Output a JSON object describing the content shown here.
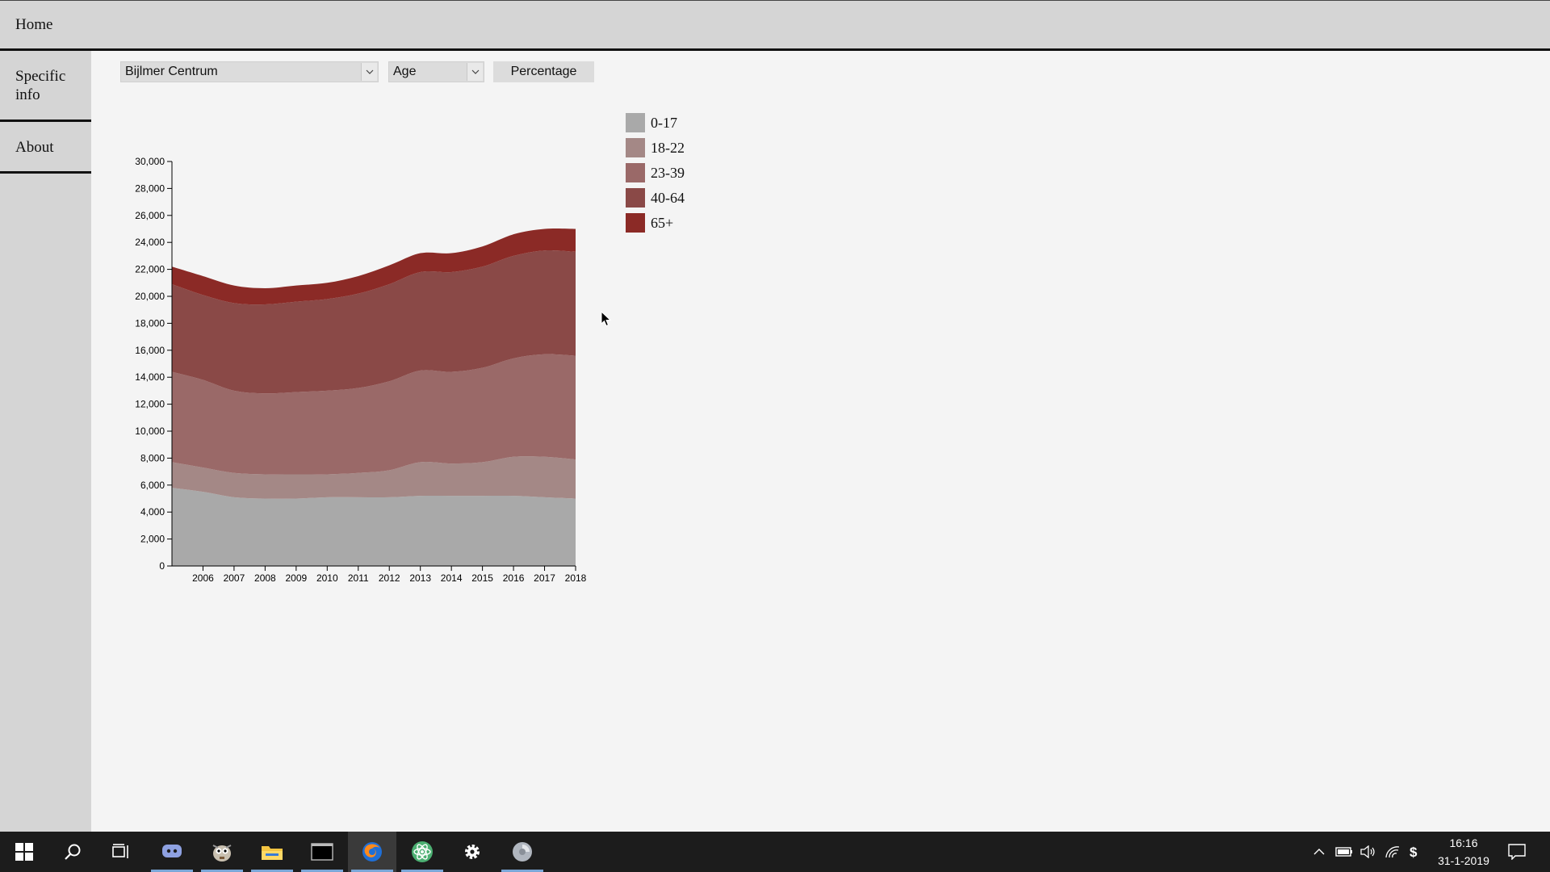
{
  "nav": {
    "home_label": "Home"
  },
  "sidebar": {
    "items": [
      {
        "label": "Specific info"
      },
      {
        "label": "About"
      }
    ]
  },
  "controls": {
    "area_select": {
      "value": "Bijlmer Centrum"
    },
    "variable_select": {
      "value": "Age"
    },
    "percentage_button": {
      "label": "Percentage"
    }
  },
  "chart_data": {
    "type": "area",
    "stacked": true,
    "x": [
      2005,
      2006,
      2007,
      2008,
      2009,
      2010,
      2011,
      2012,
      2013,
      2014,
      2015,
      2016,
      2017,
      2018
    ],
    "x_ticks": [
      2006,
      2007,
      2008,
      2009,
      2010,
      2011,
      2012,
      2013,
      2014,
      2015,
      2016,
      2017,
      2018
    ],
    "ylim": [
      0,
      30000
    ],
    "y_ticks": [
      0,
      2000,
      4000,
      6000,
      8000,
      10000,
      12000,
      14000,
      16000,
      18000,
      20000,
      22000,
      24000,
      26000,
      28000,
      30000
    ],
    "y_tick_labels": [
      "0",
      "2,000",
      "4,000",
      "6,000",
      "8,000",
      "10,000",
      "12,000",
      "14,000",
      "16,000",
      "18,000",
      "20,000",
      "22,000",
      "24,000",
      "26,000",
      "28,000",
      "30,000"
    ],
    "legend_position": "top-right",
    "series": [
      {
        "name": "0-17",
        "color": "#a9a9a9",
        "values": [
          5800,
          5500,
          5100,
          5000,
          5000,
          5100,
          5100,
          5100,
          5200,
          5200,
          5200,
          5200,
          5100,
          5000
        ]
      },
      {
        "name": "18-22",
        "color": "#a48886",
        "values": [
          1900,
          1800,
          1800,
          1800,
          1800,
          1700,
          1800,
          2000,
          2500,
          2400,
          2500,
          2900,
          3000,
          2900
        ]
      },
      {
        "name": "23-39",
        "color": "#9a6968",
        "values": [
          6700,
          6500,
          6100,
          6000,
          6100,
          6200,
          6300,
          6600,
          6800,
          6800,
          7000,
          7300,
          7600,
          7700
        ]
      },
      {
        "name": "40-64",
        "color": "#8a4947",
        "values": [
          6500,
          6300,
          6500,
          6600,
          6700,
          6800,
          7000,
          7200,
          7300,
          7400,
          7500,
          7600,
          7700,
          7700
        ]
      },
      {
        "name": "65+",
        "color": "#8b2a26",
        "values": [
          1300,
          1400,
          1300,
          1200,
          1200,
          1200,
          1300,
          1400,
          1400,
          1400,
          1500,
          1600,
          1600,
          1700
        ]
      }
    ]
  },
  "taskbar": {
    "apps": [
      {
        "icon": "windows-start-icon"
      },
      {
        "icon": "search-icon"
      },
      {
        "icon": "task-view-icon"
      },
      {
        "icon": "discord-icon"
      },
      {
        "icon": "gimp-icon"
      },
      {
        "icon": "file-explorer-icon"
      },
      {
        "icon": "terminal-icon"
      },
      {
        "icon": "firefox-icon"
      },
      {
        "icon": "atom-icon"
      },
      {
        "icon": "settings-icon"
      },
      {
        "icon": "speaker-app-icon"
      }
    ],
    "tray": {
      "time": "16:16",
      "date": "31-1-2019",
      "icons": [
        "chevron-up-icon",
        "battery-icon",
        "volume-icon",
        "wifi-icon",
        "dollar-icon",
        "notifications-icon"
      ]
    }
  }
}
